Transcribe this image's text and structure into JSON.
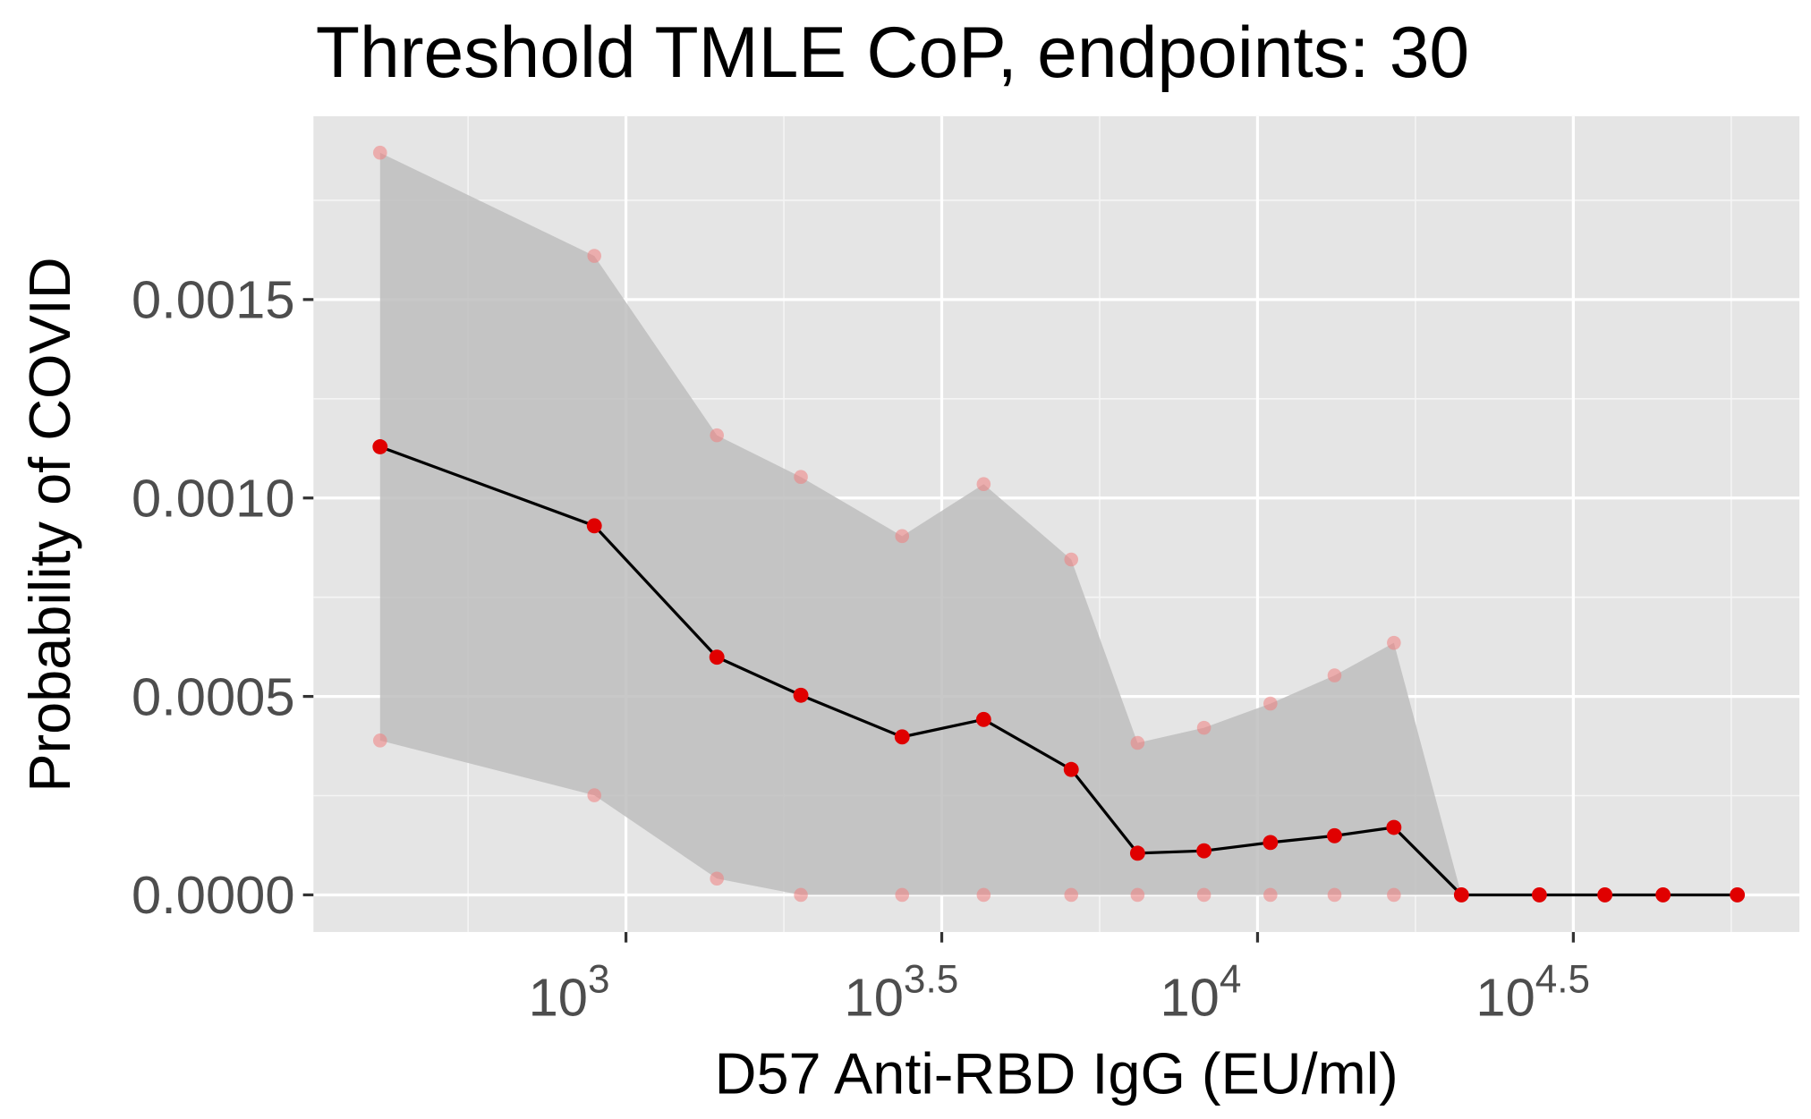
{
  "chart_data": {
    "type": "line",
    "title": "Threshold TMLE CoP, endpoints: 30",
    "x_label": "D57 Anti-RBD IgG (EU/ml)",
    "y_label": "Probability of COVID",
    "x_log_scale": true,
    "x": [
      408,
      891,
      1393,
      1892,
      2737,
      3684,
      5070,
      6457,
      8226,
      10480,
      13240,
      16440,
      21030,
      27940,
      35480,
      43860,
      57500
    ],
    "series": [
      {
        "name": "estimate",
        "color": "#e00000",
        "values": [
          0.001129,
          0.00093,
          0.000599,
          0.000503,
          0.000398,
          0.000442,
          0.000316,
          0.000105,
          0.000111,
          0.000132,
          0.000149,
          0.00017,
          0,
          0,
          0,
          0,
          0
        ]
      },
      {
        "name": "upper",
        "color": "#f08080",
        "values": [
          0.00187,
          0.00161,
          0.001158,
          0.001053,
          0.000904,
          0.001035,
          0.000845,
          0.000383,
          0.000421,
          0.000482,
          0.000553,
          0.000635,
          0,
          null,
          null,
          null,
          null
        ]
      },
      {
        "name": "lower",
        "color": "#f08080",
        "values": [
          0.000389,
          0.000251,
          4.1e-05,
          0,
          0,
          0,
          0,
          0,
          0,
          0,
          0,
          0,
          0,
          null,
          null,
          null,
          null
        ]
      }
    ],
    "line_color": "#000000",
    "ribbon_color": "#bebebe",
    "xlim": [
      320,
      72100
    ],
    "xticks": [
      {
        "value": 1000,
        "label": "10^3"
      },
      {
        "value": 3162.28,
        "label": "10^3.5"
      },
      {
        "value": 10000,
        "label": "10^4"
      },
      {
        "value": 31622.8,
        "label": "10^4.5"
      }
    ],
    "x_minor_ticks": [
      562.34,
      1778.28,
      5623.41,
      17782.8,
      56234.1
    ],
    "ylim": [
      -9.36e-05,
      0.001962
    ],
    "yticks": [
      {
        "value": 0,
        "label": "0.0000"
      },
      {
        "value": 0.0005,
        "label": "0.0005"
      },
      {
        "value": 0.001,
        "label": "0.0010"
      },
      {
        "value": 0.0015,
        "label": "0.0015"
      }
    ],
    "y_minor_ticks": [
      0.00025,
      0.00075,
      0.00125,
      0.00175
    ],
    "grid": true
  }
}
